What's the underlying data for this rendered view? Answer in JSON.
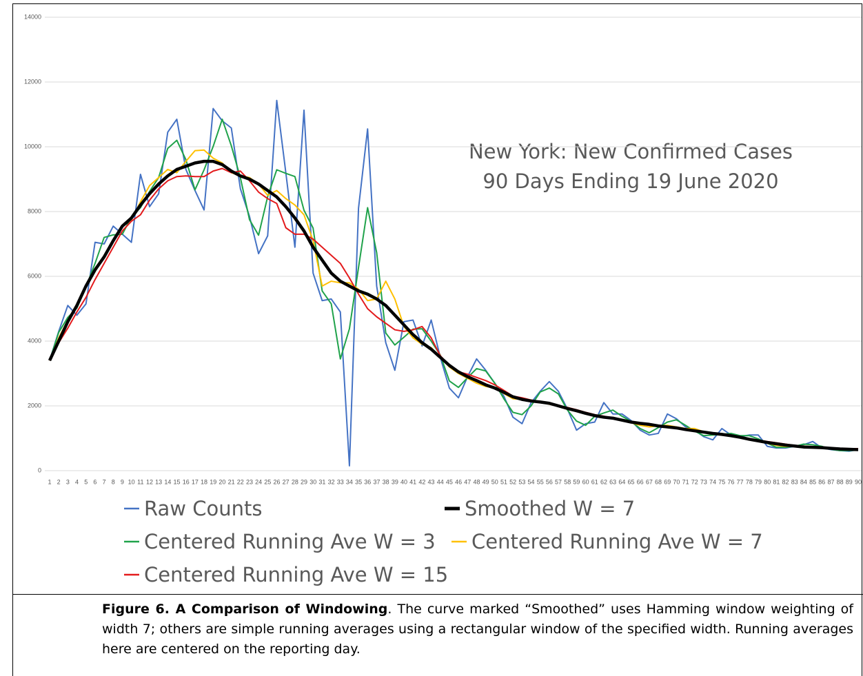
{
  "chart_data": {
    "type": "line",
    "title": "New York: New Confirmed Cases",
    "subtitle": "90 Days Ending 19 June 2020",
    "categories": [
      1,
      2,
      3,
      4,
      5,
      6,
      7,
      8,
      9,
      10,
      11,
      12,
      13,
      14,
      15,
      16,
      17,
      18,
      19,
      20,
      21,
      22,
      23,
      24,
      25,
      26,
      27,
      28,
      29,
      30,
      31,
      32,
      33,
      34,
      35,
      36,
      37,
      38,
      39,
      40,
      41,
      42,
      43,
      44,
      45,
      46,
      47,
      48,
      49,
      50,
      51,
      52,
      53,
      54,
      55,
      56,
      57,
      58,
      59,
      60,
      61,
      62,
      63,
      64,
      65,
      66,
      67,
      68,
      69,
      70,
      71,
      72,
      73,
      74,
      75,
      76,
      77,
      78,
      79,
      80,
      81,
      82,
      83,
      84,
      85,
      86,
      87,
      88,
      89,
      90
    ],
    "ylim": [
      0,
      14000
    ],
    "yticks": [
      0,
      2000,
      4000,
      6000,
      8000,
      10000,
      12000,
      14000
    ],
    "grid": true,
    "legend": "bottom",
    "series": [
      {
        "name": "Raw Counts",
        "color": "#4472c4",
        "values": [
          3400,
          4300,
          5100,
          4800,
          5150,
          7050,
          7000,
          7550,
          7300,
          7050,
          9150,
          8150,
          8550,
          10450,
          10850,
          9300,
          8650,
          8050,
          11180,
          10800,
          10580,
          8700,
          7850,
          6700,
          7250,
          11430,
          9200,
          6900,
          11130,
          6100,
          5250,
          5300,
          4900,
          150,
          8100,
          10550,
          5700,
          3950,
          3100,
          4600,
          4650,
          3850,
          4650,
          3500,
          2550,
          2250,
          2900,
          3450,
          3100,
          2700,
          2300,
          1650,
          1450,
          2100,
          2450,
          2750,
          2450,
          1900,
          1250,
          1450,
          1500,
          2100,
          1750,
          1750,
          1550,
          1250,
          1100,
          1150,
          1750,
          1600,
          1350,
          1250,
          1050,
          950,
          1300,
          1100,
          1050,
          1100,
          1100,
          750,
          700,
          700,
          750,
          800,
          900,
          700,
          650,
          620,
          600,
          650
        ]
      },
      {
        "name": "Centered Running Ave W = 3",
        "color": "#1fa24a",
        "values": [
          3400,
          4270,
          4730,
          5020,
          5670,
          6400,
          7200,
          7280,
          7300,
          7830,
          8120,
          8620,
          9050,
          9950,
          10200,
          9600,
          8670,
          9290,
          10010,
          10850,
          10030,
          9040,
          7750,
          7270,
          8460,
          9290,
          9180,
          9080,
          8040,
          7490,
          5550,
          5150,
          3450,
          4380,
          6270,
          8120,
          6730,
          4250,
          3880,
          4120,
          4370,
          4380,
          4000,
          3570,
          2770,
          2570,
          2870,
          3150,
          3080,
          2700,
          2220,
          1800,
          1730,
          2000,
          2430,
          2550,
          2370,
          1870,
          1530,
          1400,
          1680,
          1780,
          1870,
          1680,
          1520,
          1300,
          1170,
          1330,
          1500,
          1570,
          1400,
          1220,
          1080,
          1100,
          1120,
          1150,
          1080,
          1080,
          980,
          850,
          720,
          720,
          750,
          820,
          800,
          750,
          660,
          620,
          620,
          630
        ]
      },
      {
        "name": "Centered Running Ave W = 7",
        "color": "#ffc000",
        "values": [
          3400,
          4100,
          4650,
          5150,
          5650,
          6150,
          6650,
          7100,
          7550,
          7750,
          8300,
          8800,
          9050,
          9300,
          9200,
          9550,
          9880,
          9900,
          9650,
          9500,
          9200,
          9100,
          9050,
          8850,
          8500,
          8650,
          8400,
          8200,
          7900,
          7100,
          5700,
          5850,
          5800,
          5800,
          5600,
          5250,
          5300,
          5850,
          5300,
          4450,
          4100,
          3900,
          3800,
          3500,
          3200,
          3000,
          2850,
          2700,
          2600,
          2550,
          2380,
          2220,
          2200,
          2180,
          2120,
          2050,
          2000,
          1950,
          1850,
          1750,
          1680,
          1650,
          1650,
          1550,
          1480,
          1400,
          1350,
          1380,
          1400,
          1350,
          1300,
          1300,
          1200,
          1150,
          1100,
          1080,
          1050,
          950,
          900,
          850,
          780,
          750,
          750,
          760,
          740,
          710,
          680,
          660,
          650,
          650
        ]
      },
      {
        "name": "Centered Running Ave W = 15",
        "color": "#e31a1c",
        "values": [
          3400,
          3950,
          4400,
          4900,
          5350,
          5900,
          6400,
          6900,
          7400,
          7700,
          7900,
          8350,
          8700,
          8950,
          9080,
          9100,
          9080,
          9080,
          9250,
          9330,
          9200,
          9250,
          8950,
          8600,
          8400,
          8250,
          7500,
          7300,
          7300,
          7150,
          6900,
          6650,
          6400,
          5950,
          5450,
          5000,
          4750,
          4550,
          4350,
          4300,
          4350,
          4450,
          4100,
          3550,
          3250,
          3050,
          2980,
          2880,
          2780,
          2650,
          2480,
          2300,
          2250,
          2180,
          2120,
          2070,
          2000,
          1950,
          1880,
          1800,
          1730,
          1680,
          1620,
          1560,
          1500,
          1440,
          1400,
          1380,
          1330,
          1300,
          1250,
          1220,
          1180,
          1140,
          1100,
          1070,
          1040,
          990,
          940,
          900,
          860,
          820,
          780,
          750,
          730,
          720,
          700,
          690,
          680,
          680
        ]
      },
      {
        "name": "Smoothed W = 7",
        "color": "#000000",
        "values": [
          3400,
          4000,
          4600,
          5100,
          5700,
          6200,
          6600,
          7100,
          7550,
          7800,
          8200,
          8550,
          8850,
          9100,
          9300,
          9400,
          9500,
          9550,
          9550,
          9450,
          9250,
          9100,
          9000,
          8850,
          8650,
          8450,
          8150,
          7800,
          7400,
          6900,
          6500,
          6100,
          5850,
          5700,
          5550,
          5450,
          5300,
          5100,
          4800,
          4500,
          4200,
          3950,
          3750,
          3500,
          3250,
          3050,
          2900,
          2780,
          2650,
          2550,
          2420,
          2280,
          2200,
          2150,
          2120,
          2080,
          2000,
          1920,
          1850,
          1770,
          1700,
          1650,
          1620,
          1560,
          1500,
          1460,
          1430,
          1380,
          1350,
          1320,
          1270,
          1230,
          1190,
          1150,
          1120,
          1080,
          1030,
          970,
          920,
          870,
          830,
          790,
          760,
          730,
          720,
          710,
          690,
          670,
          660,
          650
        ]
      }
    ]
  },
  "caption": {
    "label": "Figure 6.  A Comparison of Windowing",
    "text": ".  The curve marked “Smoothed” uses Hamming window weighting of width 7; others are simple running averages using a rectangular window of the specified width.  Running averages here are centered on the reporting day."
  }
}
